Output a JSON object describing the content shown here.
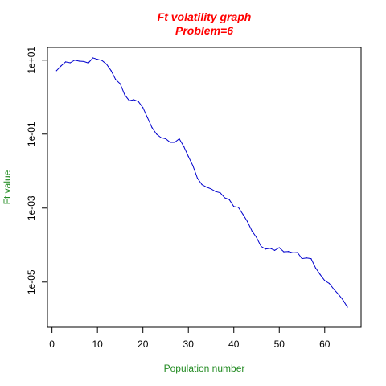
{
  "chart_data": {
    "type": "line",
    "title": "Ft volatility graph",
    "subtitle": "Problem=6",
    "xlabel": "Population number",
    "ylabel": "Ft value",
    "xlim": [
      -1,
      68
    ],
    "ylim": [
      6e-07,
      22
    ],
    "yscale": "log",
    "grid": false,
    "line_color": "#0000cd",
    "x_ticks": [
      0,
      10,
      20,
      30,
      40,
      50,
      60
    ],
    "x_tick_labels": [
      "0",
      "10",
      "20",
      "30",
      "40",
      "50",
      "60"
    ],
    "y_ticks": [
      10,
      0.1,
      0.001,
      1e-05
    ],
    "y_tick_labels": [
      "1e+01",
      "1e-01",
      "1e-03",
      "1e-05"
    ],
    "series": [
      {
        "x": [
          1,
          2,
          3,
          4,
          5,
          6,
          7,
          8,
          9,
          10,
          11,
          12,
          13,
          14,
          15,
          16,
          17,
          18,
          19,
          20,
          21,
          22,
          23,
          24,
          25,
          26,
          27,
          28,
          29,
          30,
          31,
          32,
          33,
          34,
          35,
          36,
          37,
          38,
          39,
          40,
          41,
          42,
          43,
          44,
          45,
          46,
          47,
          48,
          49,
          50,
          51,
          52,
          53,
          54,
          55,
          56,
          57,
          58,
          59,
          60,
          61,
          62,
          63,
          64,
          65
        ],
        "y": [
          5.2,
          7,
          9,
          8.5,
          10,
          9.4,
          9.2,
          8.4,
          11.5,
          10.5,
          9.8,
          7.8,
          5.2,
          3,
          2.3,
          1.15,
          0.8,
          0.85,
          0.76,
          0.52,
          0.28,
          0.15,
          0.1,
          0.08,
          0.075,
          0.06,
          0.06,
          0.075,
          0.046,
          0.025,
          0.014,
          0.0064,
          0.0043,
          0.0037,
          0.0033,
          0.0028,
          0.0026,
          0.0019,
          0.0017,
          0.0011,
          0.00105,
          0.00068,
          0.00043,
          0.00024,
          0.00016,
          9.2e-05,
          7.8e-05,
          8.2e-05,
          7.2e-05,
          8.5e-05,
          6.6e-05,
          6.7e-05,
          6.2e-05,
          6.3e-05,
          4.3e-05,
          4.5e-05,
          4.3e-05,
          2.4e-05,
          1.6e-05,
          1.1e-05,
          9.2e-06,
          6.4e-06,
          4.7e-06,
          3.3e-06,
          2.1e-06
        ]
      }
    ]
  }
}
